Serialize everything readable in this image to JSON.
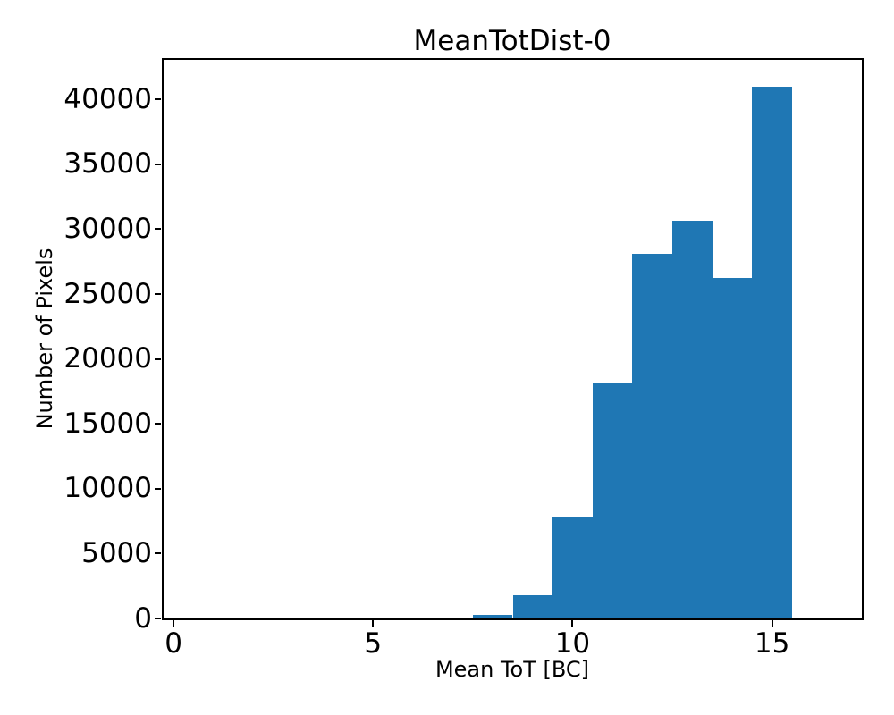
{
  "chart_data": {
    "type": "bar",
    "subtype": "histogram",
    "title": "MeanTotDist-0",
    "xlabel": "Mean ToT [BC]",
    "ylabel": "Number of Pixels",
    "bar_color": "#1f77b4",
    "text_color": "#000000",
    "background_color": "#ffffff",
    "bin_edges": [
      7.5,
      8.5,
      9.5,
      10.5,
      11.5,
      12.5,
      13.5,
      14.5,
      15.5
    ],
    "counts": [
      250,
      1800,
      7750,
      18200,
      28100,
      30650,
      26250,
      41000
    ],
    "xlim": [
      -0.25,
      17.25
    ],
    "ylim": [
      0,
      43050
    ],
    "xticks": [
      0,
      5,
      10,
      15
    ],
    "xtick_labels": [
      "0",
      "5",
      "10",
      "15"
    ],
    "yticks": [
      0,
      5000,
      10000,
      15000,
      20000,
      25000,
      30000,
      35000,
      40000
    ],
    "ytick_labels": [
      "0",
      "5000",
      "10000",
      "15000",
      "20000",
      "25000",
      "30000",
      "35000",
      "40000"
    ],
    "grid": false,
    "legend": null
  }
}
